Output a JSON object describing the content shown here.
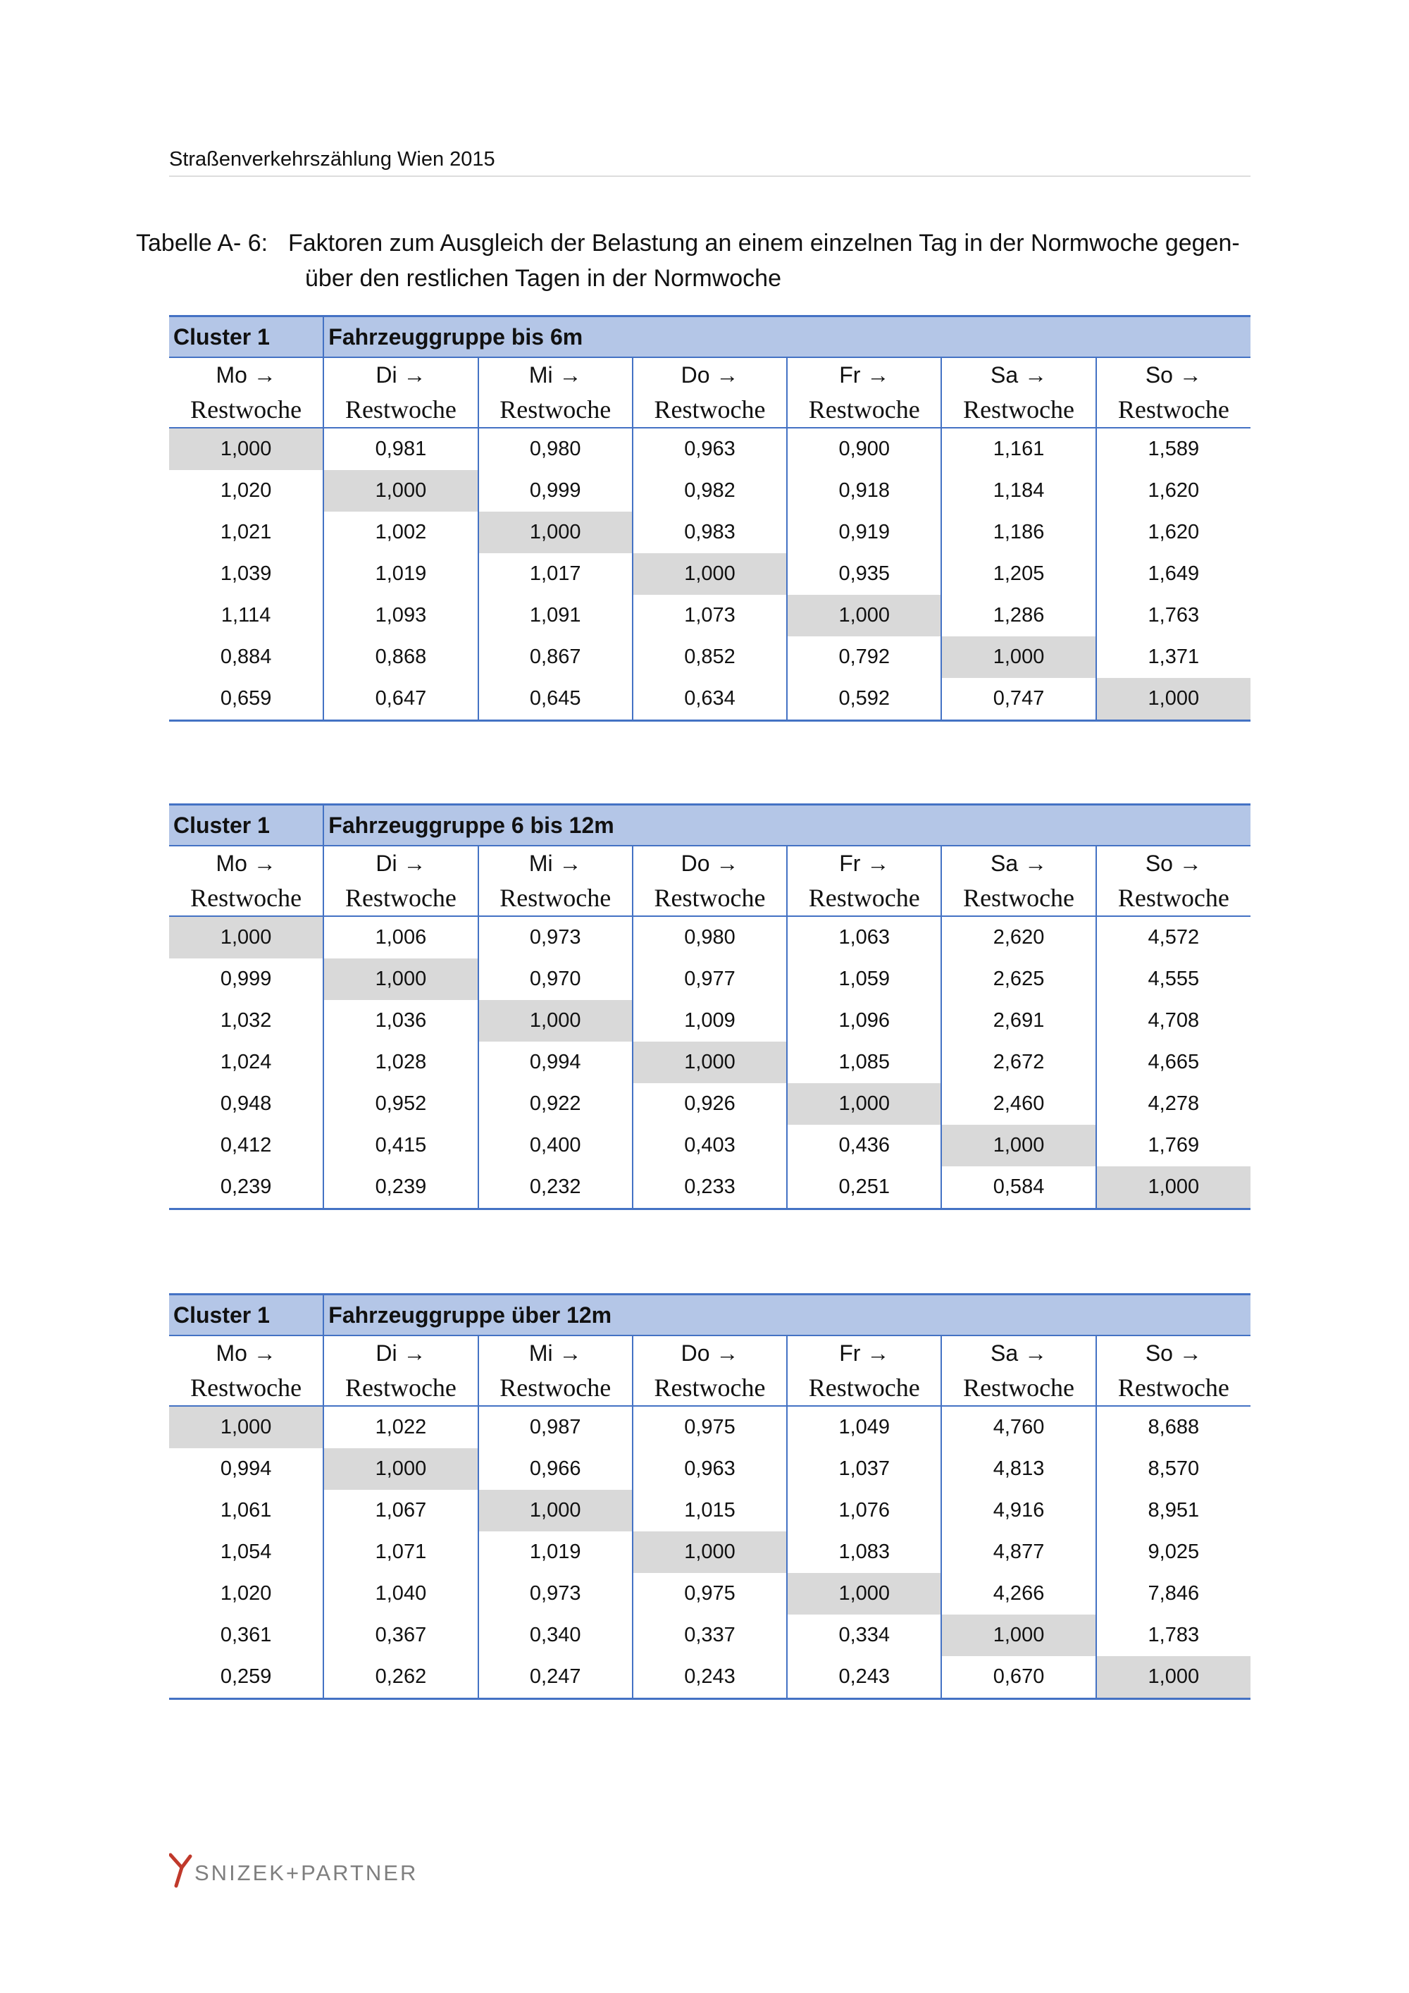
{
  "header": {
    "title": "Straßenverkehrszählung Wien 2015"
  },
  "caption": {
    "label": "Tabelle A- 6:",
    "text": "Faktoren zum Ausgleich der Belastung an einem einzelnen Tag in der Normwoche gegen-",
    "text_line2": "über den restlichen Tagen in der Normwoche"
  },
  "tables": [
    {
      "cluster": "Cluster 1",
      "group": "Fahrzeuggruppe bis 6m",
      "columns": [
        {
          "day": "Mo →",
          "label": "Restwoche"
        },
        {
          "day": "Di →",
          "label": "Restwoche"
        },
        {
          "day": "Mi →",
          "label": "Restwoche"
        },
        {
          "day": "Do →",
          "label": "Restwoche"
        },
        {
          "day": "Fr →",
          "label": "Restwoche"
        },
        {
          "day": "Sa →",
          "label": "Restwoche"
        },
        {
          "day": "So →",
          "label": "Restwoche"
        }
      ],
      "rows": [
        [
          "1,000",
          "0,981",
          "0,980",
          "0,963",
          "0,900",
          "1,161",
          "1,589"
        ],
        [
          "1,020",
          "1,000",
          "0,999",
          "0,982",
          "0,918",
          "1,184",
          "1,620"
        ],
        [
          "1,021",
          "1,002",
          "1,000",
          "0,983",
          "0,919",
          "1,186",
          "1,620"
        ],
        [
          "1,039",
          "1,019",
          "1,017",
          "1,000",
          "0,935",
          "1,205",
          "1,649"
        ],
        [
          "1,114",
          "1,093",
          "1,091",
          "1,073",
          "1,000",
          "1,286",
          "1,763"
        ],
        [
          "0,884",
          "0,868",
          "0,867",
          "0,852",
          "0,792",
          "1,000",
          "1,371"
        ],
        [
          "0,659",
          "0,647",
          "0,645",
          "0,634",
          "0,592",
          "0,747",
          "1,000"
        ]
      ]
    },
    {
      "cluster": "Cluster 1",
      "group": "Fahrzeuggruppe 6 bis 12m",
      "columns": [
        {
          "day": "Mo →",
          "label": "Restwoche"
        },
        {
          "day": "Di →",
          "label": "Restwoche"
        },
        {
          "day": "Mi →",
          "label": "Restwoche"
        },
        {
          "day": "Do →",
          "label": "Restwoche"
        },
        {
          "day": "Fr →",
          "label": "Restwoche"
        },
        {
          "day": "Sa →",
          "label": "Restwoche"
        },
        {
          "day": "So →",
          "label": "Restwoche"
        }
      ],
      "rows": [
        [
          "1,000",
          "1,006",
          "0,973",
          "0,980",
          "1,063",
          "2,620",
          "4,572"
        ],
        [
          "0,999",
          "1,000",
          "0,970",
          "0,977",
          "1,059",
          "2,625",
          "4,555"
        ],
        [
          "1,032",
          "1,036",
          "1,000",
          "1,009",
          "1,096",
          "2,691",
          "4,708"
        ],
        [
          "1,024",
          "1,028",
          "0,994",
          "1,000",
          "1,085",
          "2,672",
          "4,665"
        ],
        [
          "0,948",
          "0,952",
          "0,922",
          "0,926",
          "1,000",
          "2,460",
          "4,278"
        ],
        [
          "0,412",
          "0,415",
          "0,400",
          "0,403",
          "0,436",
          "1,000",
          "1,769"
        ],
        [
          "0,239",
          "0,239",
          "0,232",
          "0,233",
          "0,251",
          "0,584",
          "1,000"
        ]
      ]
    },
    {
      "cluster": "Cluster 1",
      "group": "Fahrzeuggruppe über 12m",
      "columns": [
        {
          "day": "Mo →",
          "label": "Restwoche"
        },
        {
          "day": "Di →",
          "label": "Restwoche"
        },
        {
          "day": "Mi →",
          "label": "Restwoche"
        },
        {
          "day": "Do →",
          "label": "Restwoche"
        },
        {
          "day": "Fr →",
          "label": "Restwoche"
        },
        {
          "day": "Sa →",
          "label": "Restwoche"
        },
        {
          "day": "So →",
          "label": "Restwoche"
        }
      ],
      "rows": [
        [
          "1,000",
          "1,022",
          "0,987",
          "0,975",
          "1,049",
          "4,760",
          "8,688"
        ],
        [
          "0,994",
          "1,000",
          "0,966",
          "0,963",
          "1,037",
          "4,813",
          "8,570"
        ],
        [
          "1,061",
          "1,067",
          "1,000",
          "1,015",
          "1,076",
          "4,916",
          "8,951"
        ],
        [
          "1,054",
          "1,071",
          "1,019",
          "1,000",
          "1,083",
          "4,877",
          "9,025"
        ],
        [
          "1,020",
          "1,040",
          "0,973",
          "0,975",
          "1,000",
          "4,266",
          "7,846"
        ],
        [
          "0,361",
          "0,367",
          "0,340",
          "0,337",
          "0,334",
          "1,000",
          "1,783"
        ],
        [
          "0,259",
          "0,262",
          "0,247",
          "0,243",
          "0,243",
          "0,670",
          "1,000"
        ]
      ]
    }
  ],
  "footer": {
    "logo": "SNIZEK+PARTNER"
  }
}
